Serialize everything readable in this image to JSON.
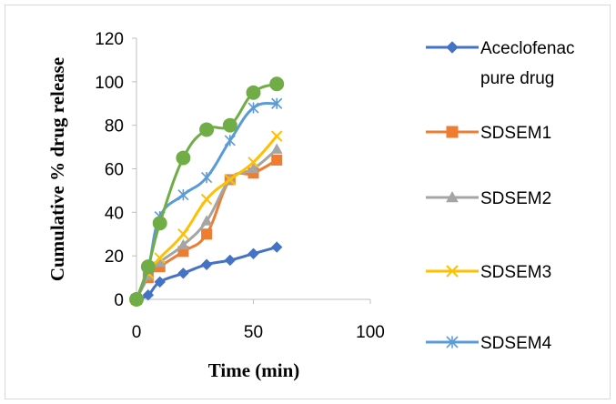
{
  "chart_data": {
    "type": "line",
    "title": "",
    "xlabel": "Time (min)",
    "ylabel": "Cumulative % drug release",
    "xlim": [
      0,
      100
    ],
    "ylim": [
      0,
      120
    ],
    "xticks": [
      "0",
      "50",
      "100"
    ],
    "yticks": [
      "0",
      "20",
      "40",
      "60",
      "80",
      "100",
      "120"
    ],
    "grid": false,
    "legend_position": "right",
    "x": [
      0,
      5,
      10,
      20,
      30,
      40,
      50,
      60
    ],
    "series": [
      {
        "name": "Aceclofenac pure drug",
        "legend_lines": [
          "Aceclofenac",
          "pure drug"
        ],
        "color": "#4472c4",
        "marker": "diamond",
        "values": [
          0,
          2,
          8,
          12,
          16,
          18,
          21,
          24
        ]
      },
      {
        "name": "SDSEM1",
        "legend_lines": [
          "SDSEM1"
        ],
        "color": "#ed7d31",
        "marker": "square",
        "values": [
          0,
          10,
          15,
          22,
          30,
          55,
          58,
          64
        ]
      },
      {
        "name": "SDSEM2",
        "legend_lines": [
          "SDSEM2"
        ],
        "color": "#a5a5a5",
        "marker": "triangle",
        "values": [
          0,
          11,
          17,
          25,
          36,
          55,
          60,
          69
        ]
      },
      {
        "name": "SDSEM3",
        "legend_lines": [
          "SDSEM3"
        ],
        "color": "#ffc000",
        "marker": "x",
        "values": [
          0,
          12,
          19,
          30,
          46,
          55,
          63,
          75
        ]
      },
      {
        "name": "SDSEM4",
        "legend_lines": [
          "SDSEM4"
        ],
        "color": "#5b9bd5",
        "marker": "star",
        "values": [
          0,
          14,
          38,
          48,
          56,
          73,
          88,
          90
        ]
      },
      {
        "name": "",
        "legend_lines": [],
        "color": "#70ad47",
        "marker": "circle",
        "values": [
          0,
          15,
          35,
          65,
          78,
          80,
          95,
          99
        ]
      }
    ]
  }
}
